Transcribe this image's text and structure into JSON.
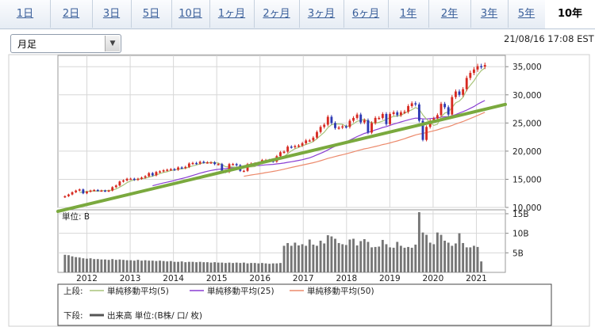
{
  "tabs": [
    "1日",
    "2日",
    "3日",
    "5日",
    "10日",
    "1ヶ月",
    "2ヶ月",
    "3ヶ月",
    "6ヶ月",
    "1年",
    "2年",
    "3年",
    "5年",
    "10年"
  ],
  "active_tab": "10年",
  "period_select": {
    "value": "月足"
  },
  "timestamp": "21/08/16 17:08 EST",
  "icons": {
    "dropdown": "chevron-down-icon"
  },
  "colors": {
    "up": "#d72a21",
    "down": "#2d39b3",
    "sma5": "#a8c47a",
    "sma25": "#8a3fd3",
    "sma50": "#ec8a6c",
    "trend": "#7aa93e",
    "volume": "#757575",
    "tab_link": "#3a5f9a"
  },
  "legend": {
    "upper_label": "上段:",
    "lower_label": "下段:",
    "items": [
      "単純移動平均(5)",
      "単純移動平均(25)",
      "単純移動平均(50)"
    ],
    "volume_item": "出来高 単位:(B株/ 口/ 枚)"
  },
  "chart_data": [
    {
      "type": "candlestick",
      "x_range": [
        2011.33,
        2021.67
      ],
      "y_ticks": [
        "10,000",
        "15,000",
        "20,000",
        "25,000",
        "30,000",
        "35,000"
      ],
      "ylim": [
        10000,
        37000
      ],
      "x_tick_labels": [
        "2012",
        "2013",
        "2014",
        "2015",
        "2016",
        "2017",
        "2018",
        "2019",
        "2020",
        "2021"
      ],
      "grid": true,
      "closes": [
        12000,
        12300,
        12700,
        13000,
        13200,
        12500,
        12800,
        13000,
        13100,
        13000,
        13000,
        12900,
        13000,
        13600,
        13900,
        14600,
        14800,
        15100,
        15100,
        14900,
        15100,
        15300,
        15550,
        16100,
        15700,
        16300,
        16400,
        16600,
        16700,
        16800,
        16700,
        17100,
        17000,
        17200,
        17800,
        17900,
        17800,
        18100,
        18000,
        18000,
        18000,
        17700,
        17700,
        16500,
        16300,
        17700,
        17700,
        17500,
        16500,
        16500,
        17700,
        17800,
        17800,
        17900,
        18400,
        18400,
        18300,
        18150,
        19100,
        19800,
        19900,
        20800,
        20700,
        20900,
        21000,
        21400,
        21900,
        21900,
        22400,
        23400,
        24300,
        24700,
        26100,
        25000,
        24100,
        24200,
        24400,
        24300,
        25400,
        25900,
        26500,
        25100,
        25500,
        23300,
        25000,
        25900,
        25900,
        26600,
        24800,
        26600,
        26900,
        26400,
        26900,
        27000,
        28000,
        28500,
        28300,
        25400,
        22000,
        24300,
        25400,
        25800,
        26400,
        28400,
        27800,
        26500,
        29600,
        30600,
        30000,
        31000,
        33000,
        33900,
        34500,
        35100,
        35000,
        35300
      ],
      "sma5_label": "単純移動平均(5)",
      "sma25_label": "単純移動平均(25)",
      "sma50_label": "単純移動平均(50)",
      "trendline": {
        "start": {
          "x": 2011.33,
          "y": 9300
        },
        "end": {
          "x": 2021.67,
          "y": 28300
        }
      }
    },
    {
      "type": "bar",
      "unit_label": "単位: B",
      "y_ticks": [
        "5B",
        "10B",
        "15B"
      ],
      "ylim": [
        0,
        16
      ],
      "values": [
        4.5,
        4.4,
        4.1,
        3.9,
        3.8,
        3.6,
        3.5,
        3.6,
        3.4,
        3.4,
        3.3,
        3.3,
        3.2,
        3.4,
        3.2,
        3.3,
        3.2,
        3.1,
        3.1,
        3.0,
        3.2,
        3.0,
        3.1,
        3.0,
        3.0,
        2.9,
        3.0,
        2.9,
        2.8,
        2.9,
        2.7,
        2.7,
        2.8,
        2.6,
        2.7,
        2.7,
        2.6,
        2.7,
        2.6,
        2.6,
        2.5,
        2.6,
        2.5,
        2.5,
        2.4,
        2.5,
        2.4,
        2.5,
        2.4,
        2.5,
        2.3,
        2.4,
        2.4,
        2.3,
        2.4,
        2.3,
        2.2,
        2.3,
        2.3,
        2.4,
        6.8,
        7.5,
        6.8,
        7.6,
        6.9,
        7.2,
        6.8,
        8.4,
        7.1,
        6.8,
        8.1,
        7.4,
        9.5,
        9.2,
        8.6,
        7.5,
        7.2,
        7.0,
        8.4,
        8.6,
        6.9,
        8.0,
        8.5,
        7.8,
        6.4,
        6.5,
        6.6,
        8.3,
        7.2,
        6.4,
        6.3,
        7.8,
        6.8,
        6.3,
        6.5,
        6.3,
        7.1,
        15.4,
        10.2,
        9.6,
        7.6,
        7.2,
        10.2,
        9.6,
        8.1,
        7.6,
        6.8,
        7.4,
        10.0,
        7.5,
        6.4,
        6.4,
        6.8,
        6.5,
        2.8
      ]
    }
  ]
}
